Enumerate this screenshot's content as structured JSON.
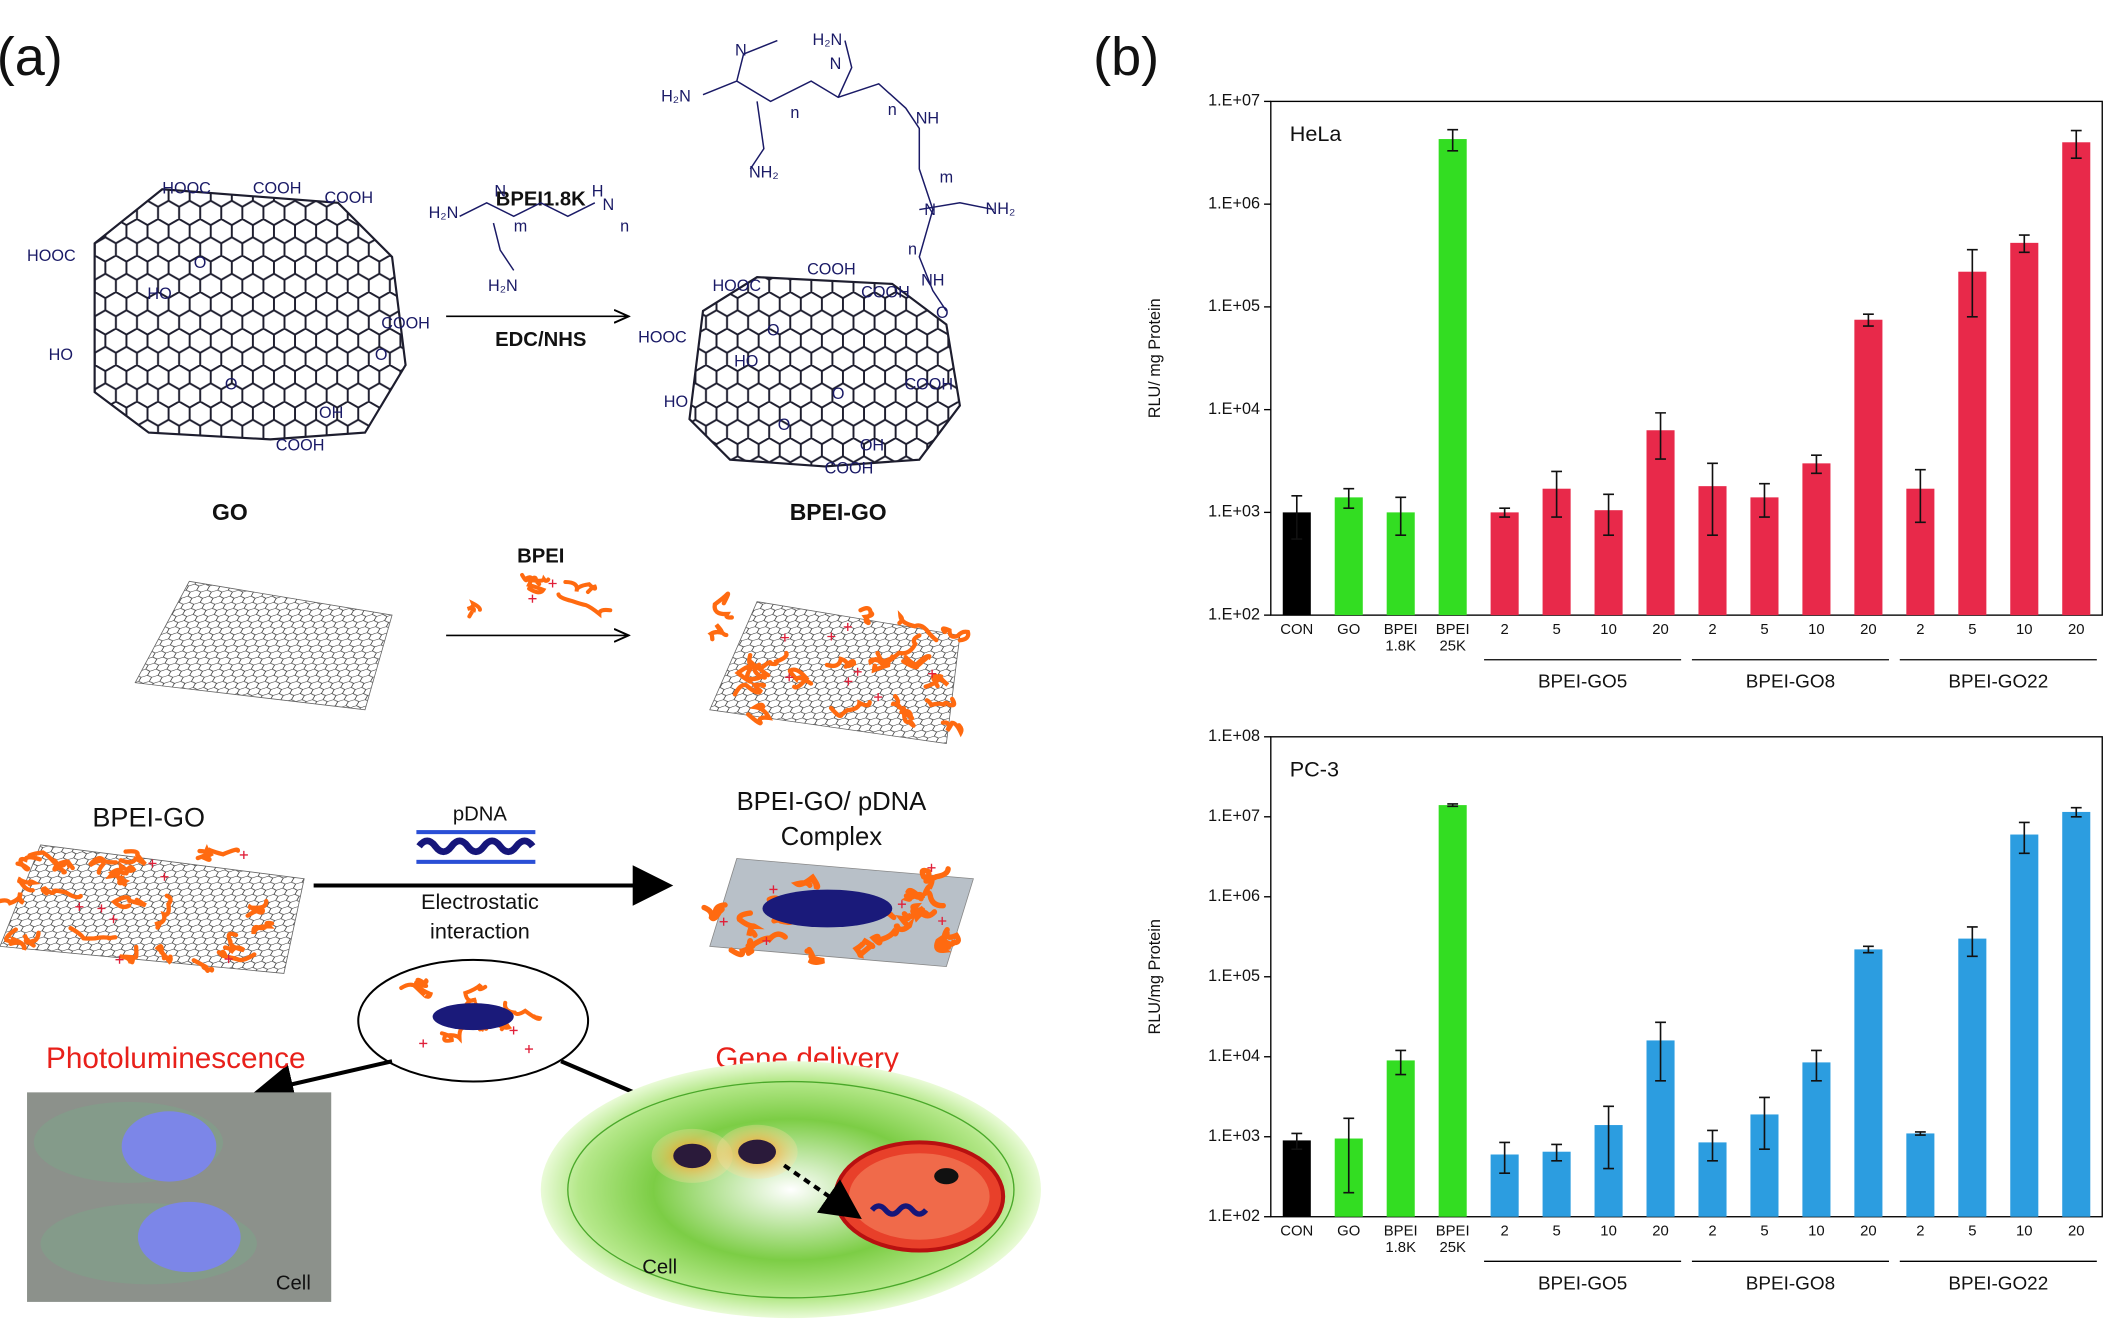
{
  "panel_a": {
    "label": "(a)",
    "reagent": "BPEI1.8K",
    "condition": "EDC/NHS",
    "go_name": "GO",
    "product_name": "BPEI-GO",
    "go_labels": [
      "HOOC",
      "COOH",
      "COOH",
      "HOOC",
      "HO",
      "O",
      "COOH",
      "HO",
      "O",
      "OH",
      "COOH",
      "O"
    ],
    "bpei_labels": [
      "H₂N",
      "N",
      "m",
      "H",
      "N",
      "n",
      "H₂N"
    ],
    "product_labels": [
      "H₂N",
      "H₂N",
      "N",
      "n",
      "N",
      "n",
      "NH",
      "NH₂",
      "m",
      "N",
      "NH₂",
      "n",
      "NH",
      "O",
      "HOOC",
      "COOH",
      "COOH",
      "HOOC",
      "HO",
      "O",
      "COOH",
      "HO",
      "O",
      "OH",
      "COOH",
      "O"
    ],
    "bpei_step": "BPEI",
    "bpei_go_name": "BPEI-GO",
    "pdna": "pDNA",
    "complex": [
      "BPEI-GO/ pDNA",
      "Complex"
    ],
    "interaction": [
      "Electrostatic",
      "interaction"
    ],
    "photoluminescence": "Photoluminescence",
    "gene_delivery": "Gene delivery",
    "cell_left": "Cell",
    "cell_right": "Cell"
  },
  "panel_b": {
    "label": "(b)"
  },
  "chart_data": [
    {
      "type": "bar",
      "annotation": "HeLa",
      "ylabel": "RLU/ mg Protein",
      "log_scale": true,
      "ylim": [
        100,
        10000000
      ],
      "yticks": [
        {
          "value": 100,
          "label": "1.E+02"
        },
        {
          "value": 1000,
          "label": "1.E+03"
        },
        {
          "value": 10000,
          "label": "1.E+04"
        },
        {
          "value": 100000,
          "label": "1.E+05"
        },
        {
          "value": 1000000,
          "label": "1.E+06"
        },
        {
          "value": 10000000,
          "label": "1.E+07"
        }
      ],
      "categories": [
        "CON",
        "GO",
        "BPEI 1.8K",
        "BPEI 25K",
        "2",
        "5",
        "10",
        "20",
        "2",
        "5",
        "10",
        "20",
        "2",
        "5",
        "10",
        "20"
      ],
      "values": [
        1000,
        1400,
        1000,
        4300000,
        1000,
        1700,
        1050,
        6300,
        1800,
        1400,
        3000,
        75000,
        1700,
        220000,
        420000,
        4000000
      ],
      "errors": [
        450,
        300,
        400,
        1000000,
        100,
        800,
        450,
        3000,
        1200,
        500,
        600,
        10000,
        900,
        140000,
        80000,
        1200000
      ],
      "colors": [
        "#000000",
        "#33dd22",
        "#33dd22",
        "#33dd22",
        "#e8294a",
        "#e8294a",
        "#e8294a",
        "#e8294a",
        "#e8294a",
        "#e8294a",
        "#e8294a",
        "#e8294a",
        "#e8294a",
        "#e8294a",
        "#e8294a",
        "#e8294a"
      ],
      "groups": [
        {
          "label": "BPEI-GO5",
          "span": [
            4,
            7
          ]
        },
        {
          "label": "BPEI-GO8",
          "span": [
            8,
            11
          ]
        },
        {
          "label": "BPEI-GO22",
          "span": [
            12,
            15
          ]
        }
      ]
    },
    {
      "type": "bar",
      "annotation": "PC-3",
      "ylabel": "RLU/mg Protein",
      "log_scale": true,
      "ylim": [
        100,
        100000000
      ],
      "yticks": [
        {
          "value": 100,
          "label": "1.E+02"
        },
        {
          "value": 1000,
          "label": "1.E+03"
        },
        {
          "value": 10000,
          "label": "1.E+04"
        },
        {
          "value": 100000,
          "label": "1.E+05"
        },
        {
          "value": 1000000,
          "label": "1.E+06"
        },
        {
          "value": 10000000,
          "label": "1.E+07"
        },
        {
          "value": 100000000,
          "label": "1.E+08"
        }
      ],
      "categories": [
        "CON",
        "GO",
        "BPEI 1.8K",
        "BPEI 25K",
        "2",
        "5",
        "10",
        "20",
        "2",
        "5",
        "10",
        "20",
        "2",
        "5",
        "10",
        "20"
      ],
      "values": [
        900,
        950,
        9000,
        14000000,
        600,
        650,
        1400,
        16000,
        850,
        1900,
        8500,
        220000,
        1100,
        300000,
        6000000,
        11500000
      ],
      "errors": [
        200,
        750,
        3000,
        500000,
        250,
        150,
        1000,
        11000,
        350,
        1200,
        3500,
        20000,
        50,
        120000,
        2500000,
        1500000
      ],
      "colors": [
        "#000000",
        "#33dd22",
        "#33dd22",
        "#33dd22",
        "#2c9de0",
        "#2c9de0",
        "#2c9de0",
        "#2c9de0",
        "#2c9de0",
        "#2c9de0",
        "#2c9de0",
        "#2c9de0",
        "#2c9de0",
        "#2c9de0",
        "#2c9de0",
        "#2c9de0"
      ],
      "groups": [
        {
          "label": "BPEI-GO5",
          "span": [
            4,
            7
          ]
        },
        {
          "label": "BPEI-GO8",
          "span": [
            8,
            11
          ]
        },
        {
          "label": "BPEI-GO22",
          "span": [
            12,
            15
          ]
        }
      ]
    }
  ]
}
